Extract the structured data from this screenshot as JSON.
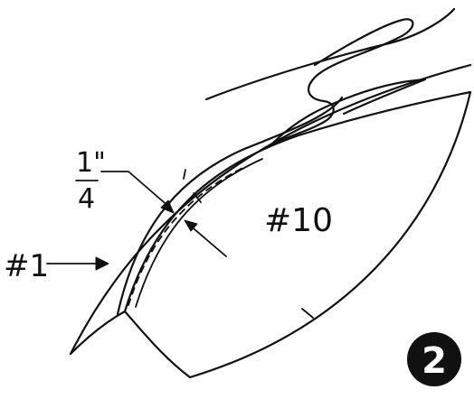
{
  "diagram": {
    "fraction_numerator": "1\"",
    "fraction_denominator": "4",
    "label_part_1": "#1",
    "label_part_10": "#10",
    "figure_number": "2"
  },
  "colors": {
    "ink": "#111111",
    "background": "#ffffff",
    "badge_fill": "#111111",
    "badge_text": "#ffffff"
  }
}
